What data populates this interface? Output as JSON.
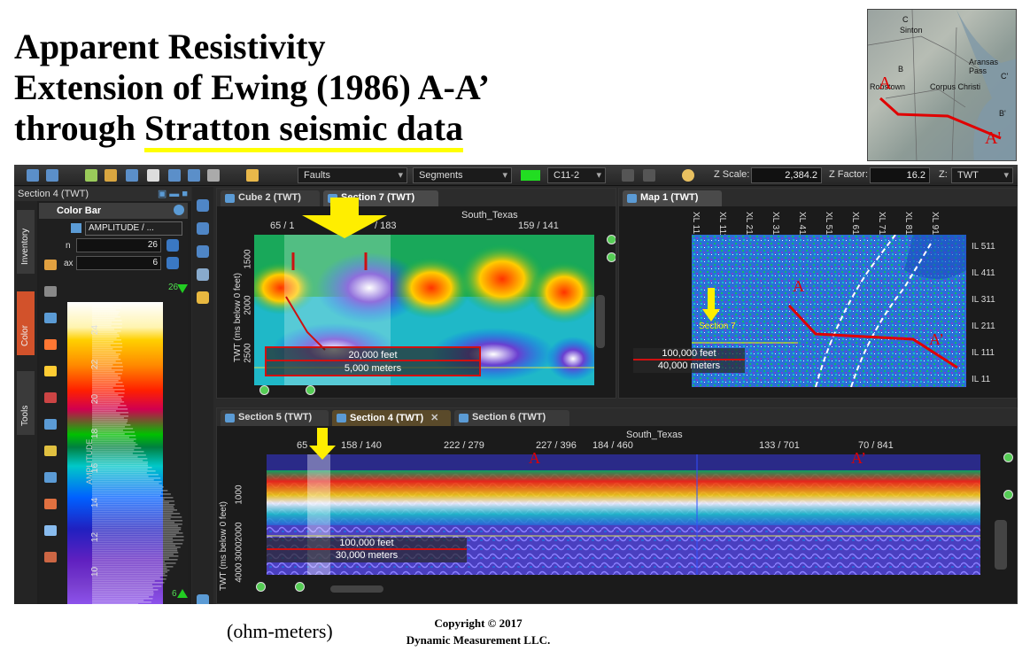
{
  "slide": {
    "title_line1": "Apparent Resistivity",
    "title_line2": "Extension of Ewing (1986) A-A’",
    "title_line3_prefix": "through ",
    "title_line3_underlined": "Stratton seismic data",
    "units": "(ohm-meters)",
    "copyright_line1": "Copyright  © 2017",
    "copyright_line2": "Dynamic Measurement LLC."
  },
  "inset_map": {
    "labels": [
      "C",
      "Sinton",
      "B",
      "Robstown",
      "Corpus Christi",
      "Aransas Pass",
      "C'",
      "B'",
      "A",
      "A'"
    ]
  },
  "toolbar": {
    "faults_combo": "Faults",
    "segments_combo": "Segments",
    "horizon_combo": "C11-2",
    "zscale_label": "Z Scale:",
    "zscale_value": "2,384.2",
    "zfactor_label": "Z Factor:",
    "zfactor_value": "16.2",
    "zdomain_label": "Z:",
    "zdomain_value": "TWT"
  },
  "left_panel": {
    "header": "Section 4 (TWT)",
    "vtabs": [
      "Inventory",
      "Color",
      "Tools"
    ],
    "colorbar_title": "Color Bar",
    "attribute": "AMPLITUDE / ...",
    "max_value": "26",
    "min_value": "6",
    "max_label": "n",
    "min_label": "ax",
    "top_marker": "26",
    "bottom_marker": "6",
    "axis_label": "AMPLITUDE",
    "ticks": [
      "24",
      "22",
      "20",
      "18",
      "16",
      "14",
      "12",
      "10",
      "8"
    ]
  },
  "section7_panel": {
    "tabs": [
      "Cube 2 (TWT)",
      "Section 7 (TWT)"
    ],
    "survey": "South_Texas",
    "xticks": [
      "65 / 1",
      "/ 183",
      "159 / 141"
    ],
    "yaxis": "TWT (ms below 0 feet)",
    "yticks": [
      "1500",
      "2000",
      "2500"
    ],
    "scale_feet": "20,000 feet",
    "scale_meters": "5,000 meters"
  },
  "map_panel": {
    "tab": "Map 1 (TWT)",
    "xl_labels": [
      "XL 11",
      "XL 111",
      "XL 211",
      "XL 311",
      "XL 411",
      "XL 511",
      "XL 611",
      "XL 711",
      "XL 811",
      "XL 911"
    ],
    "il_labels": [
      "IL 511",
      "IL 411",
      "IL 311",
      "IL 211",
      "IL 111",
      "IL 11"
    ],
    "section_marker": "Section 7",
    "scale_feet": "100,000 feet",
    "scale_meters": "40,000 meters",
    "A": "A",
    "A_prime": "A’"
  },
  "section4_panel": {
    "tabs": [
      "Section 5 (TWT)",
      "Section 4 (TWT)",
      "Section 6 (TWT)"
    ],
    "survey": "South_Texas",
    "xticks": [
      "65",
      "158 / 140",
      "222 / 279",
      "227 / 396",
      "184 / 460",
      "133 / 701",
      "70 / 841"
    ],
    "yaxis": "TWT (ms below 0 feet)",
    "yticks": [
      "1000",
      "2000",
      "3000",
      "4000"
    ],
    "scale_feet": "100,000 feet",
    "scale_meters": "30,000 meters",
    "A": "A",
    "A_prime": "A’"
  },
  "colors": {
    "highlight": "#ffff00",
    "scale_red": "#d01010",
    "arrow_yellow": "#ffee00",
    "panel_bg": "#1b1b1b"
  }
}
